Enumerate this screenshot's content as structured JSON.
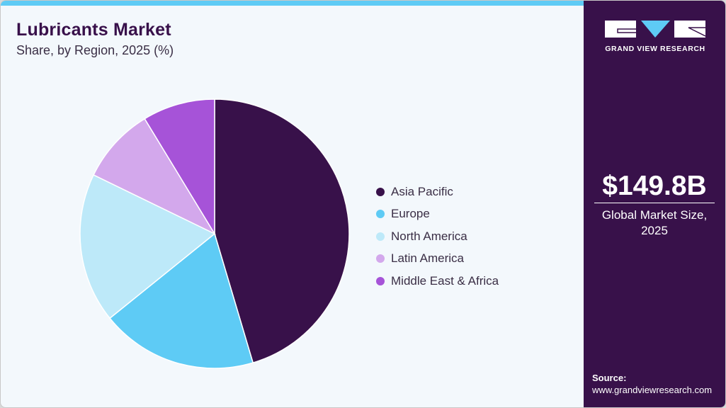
{
  "header": {
    "title": "Lubricants Market",
    "subtitle": "Share, by Region, 2025 (%)"
  },
  "sidebar": {
    "logo_text": "GRAND VIEW RESEARCH",
    "market_size": "$149.8B",
    "market_label_line1": "Global Market Size,",
    "market_label_line2": "2025",
    "source_label": "Source:",
    "source_url": "www.grandviewresearch.com"
  },
  "colors": {
    "accent_bar": "#5ecbf5",
    "sidebar_bg": "#38114a",
    "card_bg": "#f3f8fc"
  },
  "legend": [
    {
      "label": "Asia Pacific",
      "color": "#38114a"
    },
    {
      "label": "Europe",
      "color": "#5ecbf5"
    },
    {
      "label": "North America",
      "color": "#bde9f9"
    },
    {
      "label": "Latin America",
      "color": "#d3a8ec"
    },
    {
      "label": "Middle East & Africa",
      "color": "#a653d8"
    }
  ],
  "chart_data": {
    "type": "pie",
    "title": "Lubricants Market",
    "subtitle": "Share, by Region, 2025 (%)",
    "categories": [
      "Asia Pacific",
      "Europe",
      "North America",
      "Latin America",
      "Middle East & Africa"
    ],
    "values": [
      45.4,
      18.8,
      18.0,
      9.1,
      8.7
    ],
    "colors": [
      "#38114a",
      "#5ecbf5",
      "#bde9f9",
      "#d3a8ec",
      "#a653d8"
    ],
    "start_angle": "12 o'clock, clockwise",
    "legend_position": "right",
    "data_labels": false
  }
}
